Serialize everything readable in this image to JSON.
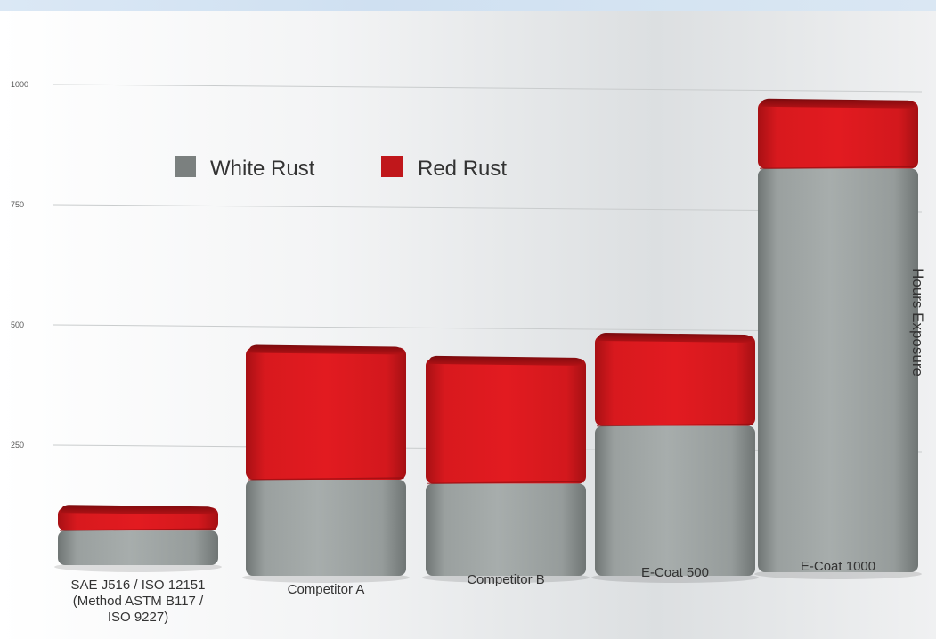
{
  "chart_data": {
    "type": "bar",
    "stacked": true,
    "title": "",
    "xlabel": "",
    "ylabel": "Hours  Exposure",
    "ylim": [
      0,
      1000
    ],
    "yticks": [
      250,
      500,
      750,
      1000
    ],
    "grid": true,
    "legend_position": "top-left",
    "categories": [
      [
        "SAE J516 / ISO 12151",
        "(Method ASTM B117 /",
        "ISO 9227)"
      ],
      [
        "Competitor A"
      ],
      [
        "Competitor B"
      ],
      [
        "E-Coat 500"
      ],
      [
        "E-Coat 1000"
      ]
    ],
    "series": [
      {
        "name": "White Rust",
        "color": "#7b807f",
        "values": [
          72,
          200,
          192,
          312,
          840
        ]
      },
      {
        "name": "Red Rust",
        "color": "#c0171b",
        "values": [
          48,
          275,
          260,
          188,
          140
        ]
      }
    ]
  }
}
